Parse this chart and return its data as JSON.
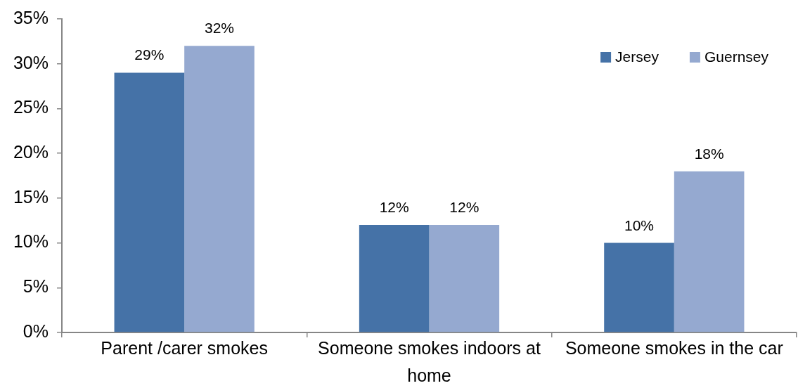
{
  "chart_data": {
    "type": "bar",
    "categories": [
      "Parent /carer smokes",
      "Someone smokes indoors at home",
      "Someone smokes in the car"
    ],
    "series": [
      {
        "name": "Jersey",
        "color": "#4572a7",
        "values": [
          29,
          12,
          10
        ],
        "value_labels": [
          "29%",
          "12%",
          "10%"
        ]
      },
      {
        "name": "Guernsey",
        "color": "#95a9d0",
        "values": [
          32,
          12,
          18
        ],
        "value_labels": [
          "32%",
          "12%",
          "18%"
        ]
      }
    ],
    "ylim": [
      0,
      35
    ],
    "yticks": [
      {
        "value": 0,
        "label": "0%"
      },
      {
        "value": 5,
        "label": "5%"
      },
      {
        "value": 10,
        "label": "10%"
      },
      {
        "value": 15,
        "label": "15%"
      },
      {
        "value": 20,
        "label": "20%"
      },
      {
        "value": 25,
        "label": "25%"
      },
      {
        "value": 30,
        "label": "30%"
      },
      {
        "value": 35,
        "label": "35%"
      }
    ],
    "legend": "top right"
  }
}
